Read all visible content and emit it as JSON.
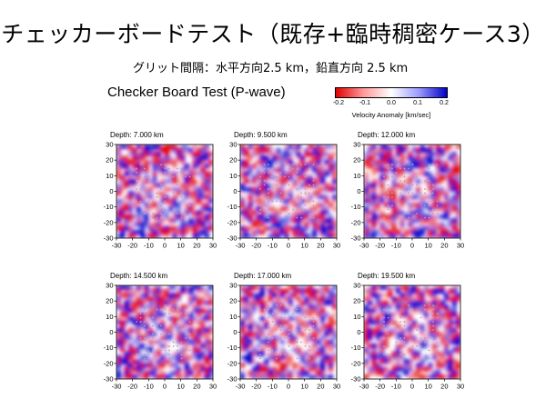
{
  "slide": {
    "title": "チェッカーボードテスト（既存+臨時稠密ケース3）",
    "subtitle": "グリット間隔：水平方向2.5 km，鉛直方向 2.5 km"
  },
  "chart_data": {
    "type": "heatmap",
    "title": "Checker Board Test (P-wave)",
    "colorbar": {
      "label": "Velocity Anomaly [km/sec]",
      "ticks": [
        "-0.2",
        "-0.1",
        "0.0",
        "0.1",
        "0.2"
      ],
      "range": [
        -0.2,
        0.2
      ],
      "colors": {
        "negative": "#e00000",
        "zero": "#ffffff",
        "positive": "#0000c8"
      }
    },
    "panels": [
      {
        "title": "Depth: 7.000 km",
        "depth_km": 7.0
      },
      {
        "title": "Depth: 9.500 km",
        "depth_km": 9.5
      },
      {
        "title": "Depth: 12.000 km",
        "depth_km": 12.0
      },
      {
        "title": "Depth: 14.500 km",
        "depth_km": 14.5
      },
      {
        "title": "Depth: 17.000 km",
        "depth_km": 17.0
      },
      {
        "title": "Depth: 19.500 km",
        "depth_km": 19.5
      }
    ],
    "xlim": [
      -30,
      30
    ],
    "ylim": [
      -30,
      30
    ],
    "x_ticks": [
      "-30",
      "-20",
      "-10",
      "0",
      "10",
      "20",
      "30"
    ],
    "y_ticks": [
      "30",
      "20",
      "10",
      "0",
      "-10",
      "-20",
      "-30"
    ],
    "grid_spacing_km": 2.5
  }
}
